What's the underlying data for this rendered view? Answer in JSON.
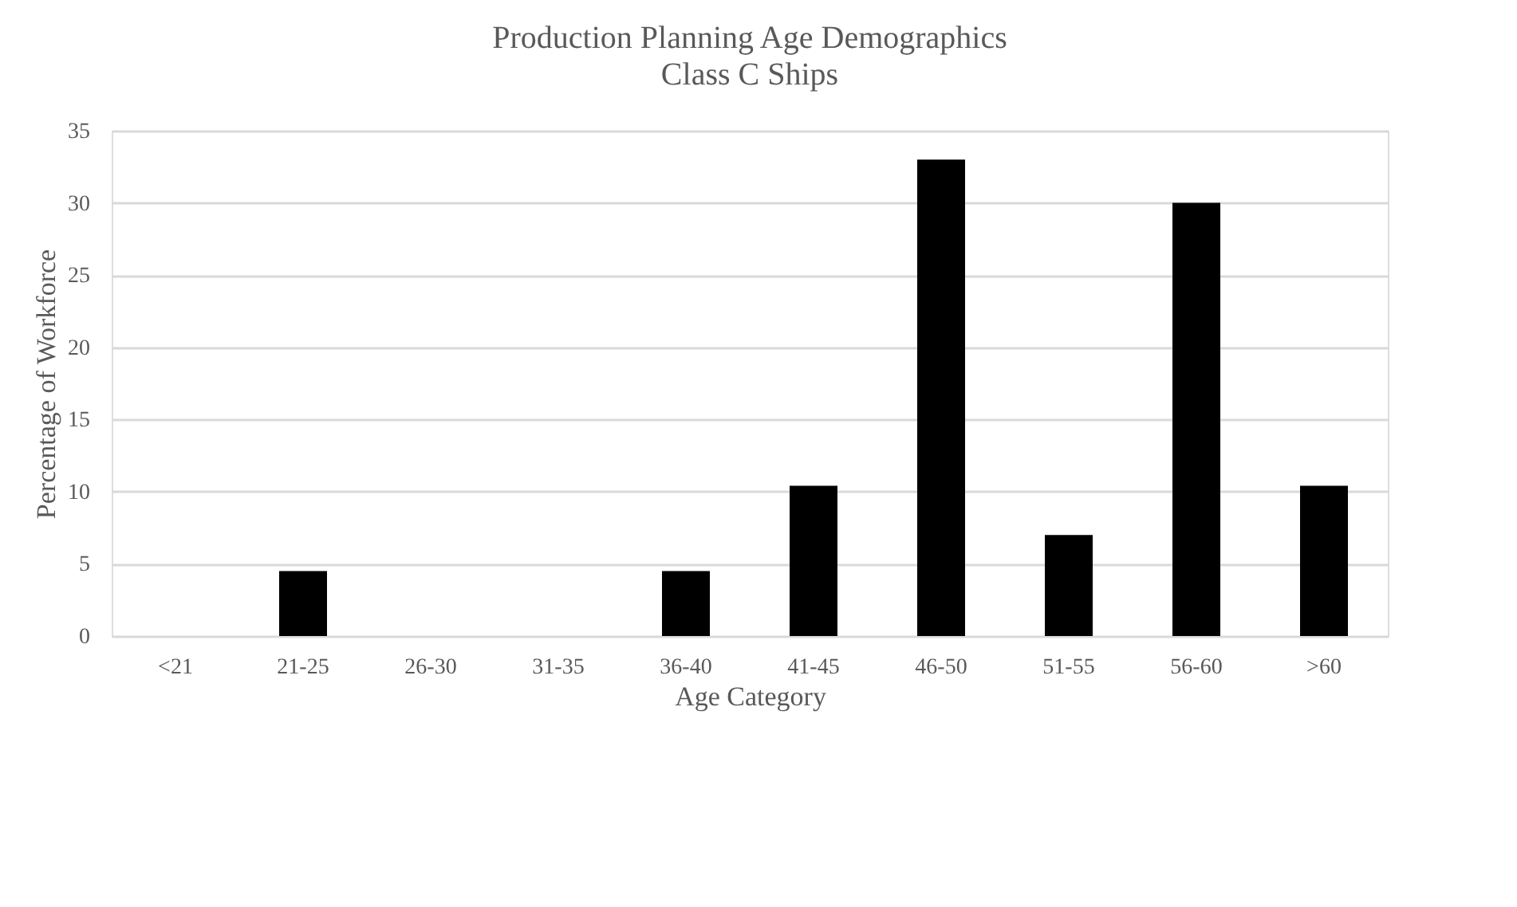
{
  "chart_data": {
    "type": "bar",
    "title": "Production Planning Age Demographics",
    "subtitle": "Class C Ships",
    "xlabel": "Age Category",
    "ylabel": "Percentage of Workforce",
    "categories": [
      "<21",
      "21-25",
      "26-30",
      "31-35",
      "36-40",
      "41-45",
      "46-50",
      "51-55",
      "56-60",
      ">60"
    ],
    "values": [
      0,
      4.5,
      0,
      0,
      4.5,
      10.4,
      33,
      7,
      30,
      10.4
    ],
    "color": "#000000",
    "ylim": [
      0,
      35
    ],
    "yticks": [
      0,
      5,
      10,
      15,
      20,
      25,
      30,
      35
    ],
    "grid": "y"
  }
}
